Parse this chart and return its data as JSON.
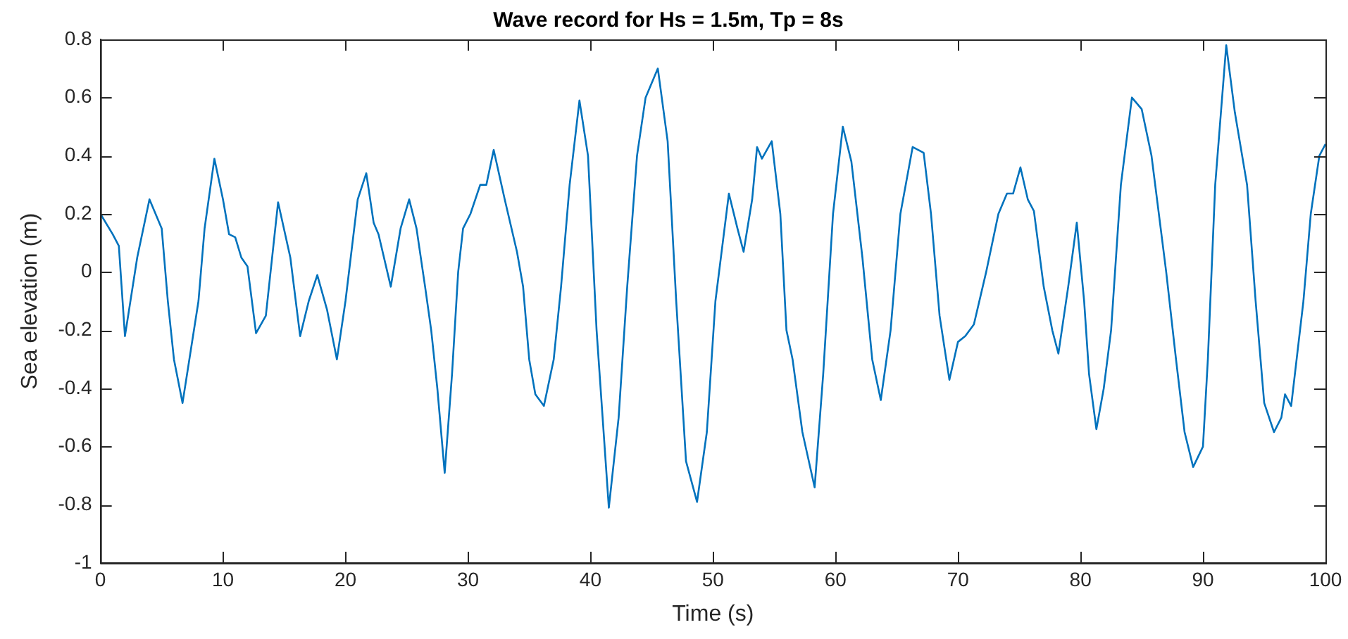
{
  "chart_data": {
    "type": "line",
    "title": "Wave record for Hs = 1.5m, Tp = 8s",
    "xlabel": "Time (s)",
    "ylabel": "Sea elevation (m)",
    "xlim": [
      0,
      100
    ],
    "xticks": [
      0,
      10,
      20,
      30,
      40,
      50,
      60,
      70,
      80,
      90,
      100
    ],
    "ylim": [
      -1,
      0.8
    ],
    "yticks": [
      -1,
      -0.8,
      -0.6,
      -0.4,
      -0.2,
      0,
      0.2,
      0.4,
      0.6,
      0.8
    ],
    "grid": false,
    "legend": false,
    "marker": "none",
    "line_style": "solid",
    "series": [
      {
        "color": "#0072bd",
        "x": [
          0,
          1,
          1.5,
          2,
          3,
          4,
          5,
          5.5,
          6,
          6.7,
          8,
          8.5,
          9.3,
          10,
          10.5,
          11,
          11.5,
          12,
          12.7,
          13.5,
          14.5,
          15.5,
          16.3,
          17,
          17.7,
          18.5,
          19.3,
          20,
          21,
          21.7,
          22.3,
          22.7,
          23.7,
          24.5,
          25.2,
          25.8,
          26.5,
          27,
          27.5,
          28.1,
          28.7,
          29.2,
          29.6,
          30.2,
          31,
          31.5,
          32.1,
          33,
          34,
          34.5,
          35,
          35.5,
          36.2,
          37,
          37.6,
          38.3,
          39.1,
          39.8,
          40.5,
          41.5,
          42.3,
          43,
          43.8,
          44.5,
          45.5,
          46.3,
          47,
          47.8,
          48.7,
          49.5,
          50.2,
          51.3,
          52,
          52.5,
          53.2,
          53.6,
          54,
          54.8,
          55.5,
          56,
          56.5,
          57.3,
          58.3,
          59,
          59.8,
          60.6,
          61.3,
          62.2,
          63,
          63.7,
          64.5,
          65.3,
          66.3,
          67.2,
          67.8,
          68.5,
          69.3,
          70,
          70.6,
          71.3,
          72.3,
          73.3,
          74,
          74.5,
          75.1,
          75.7,
          76.2,
          77,
          77.7,
          78.2,
          79,
          79.7,
          80.3,
          80.7,
          81.3,
          81.9,
          82.5,
          83.3,
          84.2,
          85,
          85.8,
          87,
          87.8,
          88.5,
          89.2,
          90,
          90.4,
          91,
          91.9,
          92.6,
          93.6,
          94.3,
          95,
          95.8,
          96.4,
          96.7,
          97.2,
          98.2,
          98.8,
          99.5,
          100
        ],
        "values": [
          0.2,
          0.13,
          0.09,
          -0.22,
          0.05,
          0.25,
          0.15,
          -0.1,
          -0.3,
          -0.45,
          -0.1,
          0.15,
          0.39,
          0.25,
          0.13,
          0.12,
          0.05,
          0.02,
          -0.21,
          -0.15,
          0.24,
          0.05,
          -0.22,
          -0.1,
          -0.01,
          -0.13,
          -0.3,
          -0.1,
          0.25,
          0.34,
          0.17,
          0.13,
          -0.05,
          0.15,
          0.25,
          0.15,
          -0.05,
          -0.2,
          -0.4,
          -0.69,
          -0.35,
          0,
          0.15,
          0.2,
          0.3,
          0.3,
          0.42,
          0.25,
          0.07,
          -0.05,
          -0.3,
          -0.42,
          -0.46,
          -0.3,
          -0.05,
          0.3,
          0.59,
          0.4,
          -0.2,
          -0.81,
          -0.5,
          -0.05,
          0.4,
          0.6,
          0.7,
          0.45,
          -0.1,
          -0.65,
          -0.79,
          -0.55,
          -0.1,
          0.27,
          0.15,
          0.07,
          0.25,
          0.43,
          0.39,
          0.45,
          0.2,
          -0.2,
          -0.3,
          -0.55,
          -0.74,
          -0.35,
          0.2,
          0.5,
          0.38,
          0.05,
          -0.3,
          -0.44,
          -0.2,
          0.2,
          0.43,
          0.41,
          0.2,
          -0.15,
          -0.37,
          -0.24,
          -0.22,
          -0.18,
          0,
          0.2,
          0.27,
          0.27,
          0.36,
          0.25,
          0.21,
          -0.05,
          -0.2,
          -0.28,
          -0.05,
          0.17,
          -0.1,
          -0.35,
          -0.54,
          -0.4,
          -0.2,
          0.3,
          0.6,
          0.56,
          0.4,
          0,
          -0.3,
          -0.55,
          -0.67,
          -0.6,
          -0.3,
          0.3,
          0.78,
          0.55,
          0.3,
          -0.1,
          -0.45,
          -0.55,
          -0.5,
          -0.42,
          -0.46,
          -0.1,
          0.2,
          0.4,
          0.44
        ]
      }
    ]
  }
}
